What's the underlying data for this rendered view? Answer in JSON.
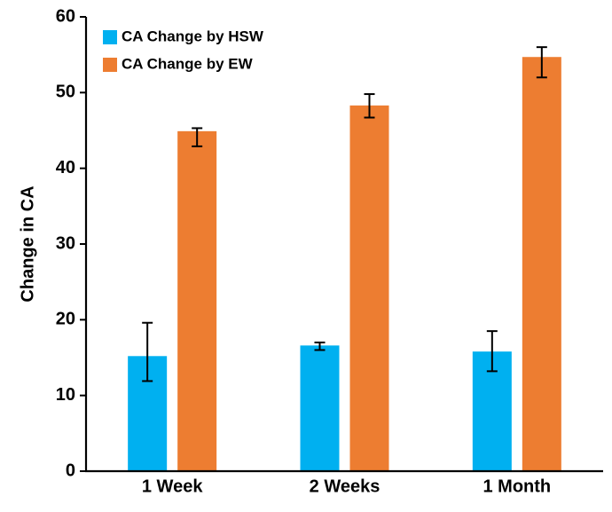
{
  "chart_data": {
    "type": "bar",
    "title": "",
    "xlabel": "",
    "ylabel": "Change in CA",
    "ylim": [
      0,
      60
    ],
    "yticks": [
      0,
      10,
      20,
      30,
      40,
      50,
      60
    ],
    "grid": false,
    "legend_position": "top-left",
    "categories": [
      "1 Week",
      "2 Weeks",
      "1 Month"
    ],
    "series": [
      {
        "name": "CA Change by HSW",
        "color": "#00b0f0",
        "values": [
          15.2,
          16.6,
          15.8
        ],
        "error_low": [
          11.9,
          16.0,
          13.2
        ],
        "error_high": [
          19.6,
          17.0,
          18.5
        ]
      },
      {
        "name": "CA Change by EW",
        "color": "#ed7d31",
        "values": [
          44.9,
          48.3,
          54.7
        ],
        "error_low": [
          42.9,
          46.7,
          52.0
        ],
        "error_high": [
          45.3,
          49.8,
          56.0
        ]
      }
    ]
  }
}
